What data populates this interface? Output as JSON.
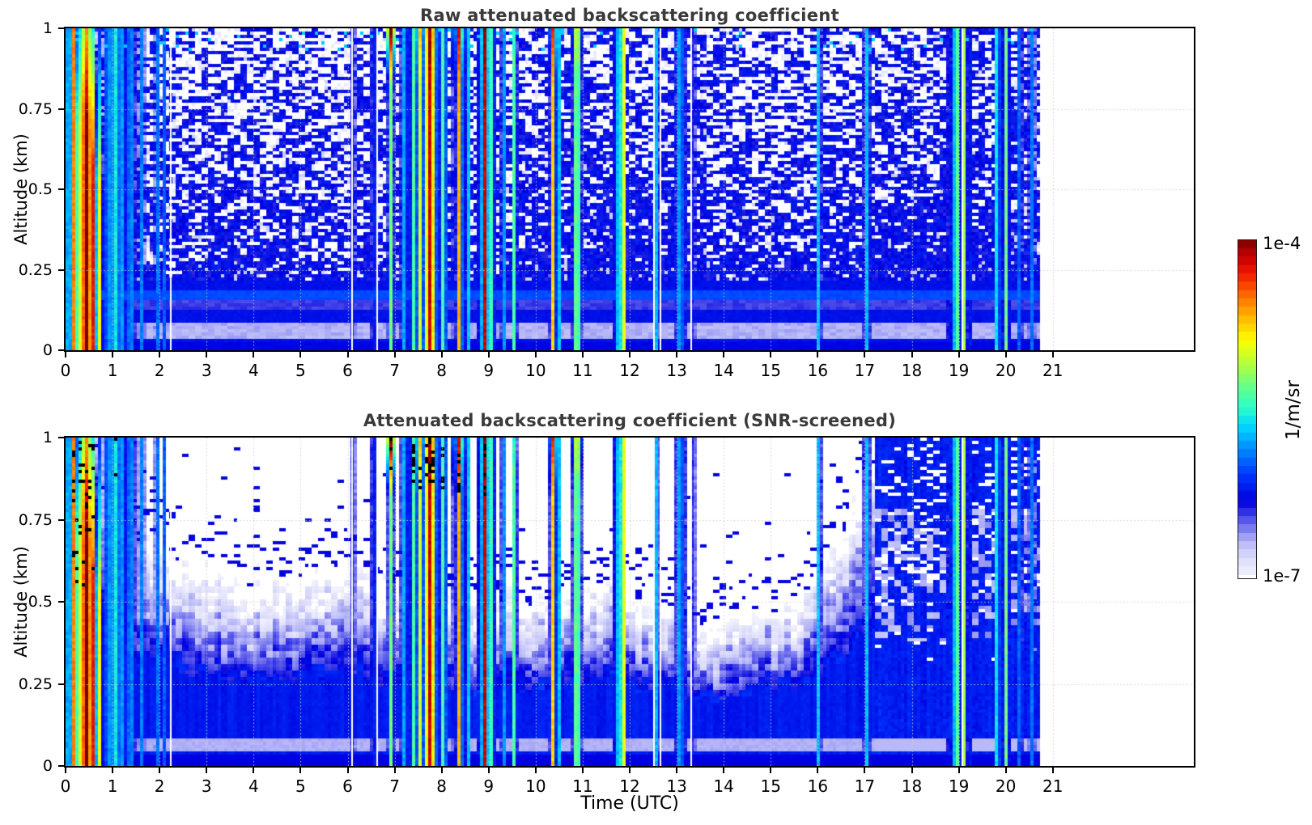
{
  "figure": {
    "background": "#ffffff"
  },
  "chart_data": [
    {
      "type": "heatmap",
      "title": "Raw attenuated backscattering coefficient",
      "xlabel": "",
      "ylabel": "Altitude (km)",
      "xlim": [
        0,
        24
      ],
      "ylim": [
        0,
        1
      ],
      "xtick_values": [
        0,
        1,
        2,
        3,
        4,
        5,
        6,
        7,
        8,
        9,
        10,
        11,
        12,
        13,
        14,
        15,
        16,
        17,
        18,
        19,
        20,
        21
      ],
      "xtick_labels": [
        "0",
        "1",
        "2",
        "3",
        "4",
        "5",
        "6",
        "7",
        "8",
        "9",
        "10",
        "11",
        "12",
        "13",
        "14",
        "15",
        "16",
        "17",
        "18",
        "19",
        "20",
        "21"
      ],
      "ytick_values": [
        0,
        0.25,
        0.5,
        0.75,
        1
      ],
      "ytick_labels": [
        "0",
        "0.25",
        "0.5",
        "0.75",
        "1"
      ],
      "grid": true,
      "screened": false,
      "data_time_range": [
        0,
        20.72
      ]
    },
    {
      "type": "heatmap",
      "title": "Attenuated backscattering coefficient (SNR-screened)",
      "xlabel": "Time (UTC)",
      "ylabel": "Altitude (km)",
      "xlim": [
        0,
        24
      ],
      "ylim": [
        0,
        1
      ],
      "xtick_values": [
        0,
        1,
        2,
        3,
        4,
        5,
        6,
        7,
        8,
        9,
        10,
        11,
        12,
        13,
        14,
        15,
        16,
        17,
        18,
        19,
        20,
        21
      ],
      "xtick_labels": [
        "0",
        "1",
        "2",
        "3",
        "4",
        "5",
        "6",
        "7",
        "8",
        "9",
        "10",
        "11",
        "12",
        "13",
        "14",
        "15",
        "16",
        "17",
        "18",
        "19",
        "20",
        "21"
      ],
      "ytick_values": [
        0,
        0.25,
        0.5,
        0.75,
        1
      ],
      "ytick_labels": [
        "0",
        "0.25",
        "0.5",
        "0.75",
        "1"
      ],
      "grid": true,
      "screened": true,
      "data_time_range": [
        0,
        20.72
      ]
    }
  ],
  "colorbar": {
    "max_label": "1e-4",
    "min_label": "1e-7",
    "unit_label": "1/m/sr",
    "segments": 40
  },
  "lidar_features": {
    "value_scale": {
      "log_min": -7,
      "log_max": -4
    },
    "colormap_stops": [
      [
        0.0,
        "#f2f2fe"
      ],
      [
        0.05,
        "#dcdcfb"
      ],
      [
        0.1,
        "#b4b4f7"
      ],
      [
        0.14,
        "#7878f0"
      ],
      [
        0.18,
        "#3c3ce8"
      ],
      [
        0.22,
        "#0000e0"
      ],
      [
        0.3,
        "#0038ff"
      ],
      [
        0.38,
        "#0090ff"
      ],
      [
        0.44,
        "#00d4ff"
      ],
      [
        0.5,
        "#2cffc8"
      ],
      [
        0.56,
        "#64ff8c"
      ],
      [
        0.63,
        "#b4ff3c"
      ],
      [
        0.7,
        "#ffff00"
      ],
      [
        0.77,
        "#ffb400"
      ],
      [
        0.84,
        "#ff6400"
      ],
      [
        0.9,
        "#f01800"
      ],
      [
        0.95,
        "#c80000"
      ],
      [
        1.0,
        "#7a0000"
      ]
    ],
    "noise_seed": 7,
    "gaps": [
      2.24,
      6.1,
      6.62,
      12.52,
      12.65,
      13.3,
      19.07
    ],
    "boundary_layer": [
      [
        0,
        0.8
      ],
      [
        0.5,
        0.8
      ],
      [
        1,
        0.78
      ],
      [
        1.5,
        0.7
      ],
      [
        2,
        0.68
      ],
      [
        2.5,
        0.65
      ],
      [
        3,
        0.62
      ],
      [
        3.5,
        0.6
      ],
      [
        4,
        0.58
      ],
      [
        4.5,
        0.57
      ],
      [
        5,
        0.58
      ],
      [
        5.5,
        0.63
      ],
      [
        6,
        0.62
      ],
      [
        6.5,
        0.6
      ],
      [
        7,
        0.55
      ],
      [
        7.5,
        0.55
      ],
      [
        8,
        0.5
      ],
      [
        8.5,
        0.5
      ],
      [
        9,
        0.52
      ],
      [
        9.5,
        0.55
      ],
      [
        10,
        0.5
      ],
      [
        10.5,
        0.52
      ],
      [
        11,
        0.55
      ],
      [
        11.5,
        0.6
      ],
      [
        12,
        0.55
      ],
      [
        12.5,
        0.5
      ],
      [
        13,
        0.48
      ],
      [
        13.5,
        0.44
      ],
      [
        14,
        0.46
      ],
      [
        15,
        0.5
      ],
      [
        15.5,
        0.52
      ],
      [
        16,
        0.58
      ],
      [
        16.5,
        0.7
      ],
      [
        17,
        0.92
      ],
      [
        17.3,
        1.0
      ],
      [
        20.72,
        1.0
      ]
    ],
    "events": [
      {
        "t": 0.07,
        "w": 0.015,
        "peak": -4.3,
        "spread": 1.5,
        "z_full": 1,
        "fade": 0
      },
      {
        "t": 0.18,
        "w": 0.045,
        "peak": -4.5,
        "spread": 1.8,
        "z_full": 1,
        "fade": 0,
        "black_top": true,
        "black_z": 0.6,
        "black_p": 0.12
      },
      {
        "t": 0.42,
        "w": 0.17,
        "peak": -4.1,
        "spread": 2.4,
        "z_full": 0.7,
        "fade": 2.2,
        "black_top": true,
        "black_z": 0.55,
        "black_p": 0.1
      },
      {
        "t": 0.58,
        "w": 0.08,
        "peak": -4.35,
        "spread": 2.0,
        "z_full": 0.55,
        "fade": 2.8
      },
      {
        "t": 0.72,
        "w": 0.05,
        "peak": -4.9,
        "spread": 1.6,
        "z_full": 0.5,
        "fade": 2.6
      },
      {
        "t": 0.9,
        "w": 0.05,
        "peak": -5.5,
        "spread": 1.2,
        "z_full": 1,
        "fade": 0.5
      },
      {
        "t": 1.08,
        "w": 0.07,
        "peak": -5.35,
        "spread": 1.0,
        "z_full": 1,
        "fade": 0.3,
        "black_top": true,
        "black_z": 0.6,
        "black_p": 0.1
      },
      {
        "t": 1.22,
        "w": 0.06,
        "peak": -5.8,
        "spread": 0.8,
        "z_full": 1,
        "fade": 0
      },
      {
        "t": 1.38,
        "w": 0.05,
        "peak": -5.6,
        "spread": 0.9,
        "z_full": 1,
        "fade": 0.4
      },
      {
        "t": 1.62,
        "w": 0.04,
        "peak": -5.9,
        "spread": 0.8,
        "z_full": 1,
        "fade": 0
      },
      {
        "t": 1.95,
        "w": 0.025,
        "peak": -5.75,
        "spread": 0.9,
        "z_full": 1,
        "fade": 0.8
      },
      {
        "t": 2.1,
        "w": 0.02,
        "peak": -6.0,
        "spread": 0.6,
        "z_full": 1,
        "fade": 0
      },
      {
        "t": 6.12,
        "w": 0.02,
        "peak": -5.7,
        "spread": 0.9,
        "z_full": 1,
        "fade": 2.5
      },
      {
        "t": 6.55,
        "w": 0.025,
        "peak": -5.6,
        "spread": 0.9,
        "z_full": 1,
        "fade": 2.0
      },
      {
        "t": 6.92,
        "w": 0.03,
        "peak": -5.3,
        "spread": 1.2,
        "z_full": 1,
        "fade": 1.5,
        "top_boost": 1.4,
        "black_top": true,
        "black_z": 0.9,
        "black_p": 0.3
      },
      {
        "t": 7.22,
        "w": 0.04,
        "peak": -5.5,
        "spread": 1.0,
        "z_full": 1,
        "fade": 0.5
      },
      {
        "t": 7.38,
        "w": 0.03,
        "peak": -4.6,
        "spread": 1.8,
        "z_full": 1,
        "fade": 0,
        "black_top": true,
        "black_z": 0.84,
        "black_p": 0.3
      },
      {
        "t": 7.52,
        "w": 0.03,
        "peak": -4.35,
        "spread": 1.8,
        "z_full": 1,
        "fade": 0,
        "top_boost": 0.3,
        "black_top": true,
        "black_z": 0.84,
        "black_p": 0.3
      },
      {
        "t": 7.75,
        "w": 0.1,
        "peak": -4.12,
        "spread": 2.2,
        "z_full": 0.95,
        "fade": 0,
        "top_boost": 0.12,
        "black_top": true,
        "black_z": 0.86,
        "black_p": 0.35
      },
      {
        "t": 8.05,
        "w": 0.03,
        "peak": -4.4,
        "spread": 1.9,
        "z_full": 1,
        "fade": 0,
        "black_top": true,
        "black_z": 0.84,
        "black_p": 0.3
      },
      {
        "t": 8.38,
        "w": 0.05,
        "peak": -4.55,
        "spread": 2.0,
        "z_full": 1,
        "fade": 0,
        "top_boost": 0.5,
        "black_top": true,
        "black_z": 0.82,
        "black_p": 0.35
      },
      {
        "t": 8.55,
        "w": 0.025,
        "peak": -4.7,
        "spread": 1.7,
        "z_full": 1,
        "fade": 0
      },
      {
        "t": 8.92,
        "w": 0.06,
        "peak": -4.15,
        "spread": 2.2,
        "z_full": 1,
        "fade": 0,
        "top_boost": 0.12,
        "black_top": true,
        "black_z": 0.8,
        "black_p": 0.35
      },
      {
        "t": 9.08,
        "w": 0.03,
        "peak": -4.6,
        "spread": 1.8,
        "z_full": 1,
        "fade": 0
      },
      {
        "t": 9.32,
        "w": 0.02,
        "peak": -5.6,
        "spread": 0.9,
        "z_full": 1,
        "fade": 0.5
      },
      {
        "t": 9.55,
        "w": 0.02,
        "peak": -4.95,
        "spread": 1.5,
        "z_full": 0.9,
        "fade": 1.5
      },
      {
        "t": 10.38,
        "w": 0.04,
        "peak": -4.5,
        "spread": 2.0,
        "z_full": 1,
        "fade": 0,
        "top_boost": 0.45
      },
      {
        "t": 10.48,
        "w": 0.025,
        "peak": -4.8,
        "spread": 1.7,
        "z_full": 1,
        "fade": 0
      },
      {
        "t": 10.88,
        "w": 0.045,
        "peak": -4.5,
        "spread": 2.0,
        "z_full": 1,
        "fade": 0,
        "top_boost": 0.3
      },
      {
        "t": 11.78,
        "w": 0.05,
        "peak": -5.25,
        "spread": 1.1,
        "z_full": 1,
        "fade": 0
      },
      {
        "t": 11.88,
        "w": 0.02,
        "peak": -4.95,
        "spread": 1.4,
        "z_full": 1,
        "fade": 0
      },
      {
        "t": 12.58,
        "w": 0.025,
        "peak": -5.55,
        "spread": 1.0,
        "z_full": 1,
        "fade": 0.5
      },
      {
        "t": 13.08,
        "w": 0.04,
        "peak": -5.35,
        "spread": 1.1,
        "z_full": 1,
        "fade": 0.3
      },
      {
        "t": 13.35,
        "w": 0.02,
        "peak": -5.8,
        "spread": 0.8,
        "z_full": 1,
        "fade": 1.0
      },
      {
        "t": 16.02,
        "w": 0.02,
        "peak": -5.6,
        "spread": 0.9,
        "z_full": 1,
        "fade": 2.8
      },
      {
        "t": 17.05,
        "w": 0.03,
        "peak": -5.7,
        "spread": 0.8,
        "z_full": 1,
        "fade": 3.0
      },
      {
        "t": 18.95,
        "w": 0.06,
        "peak": -5.2,
        "spread": 1.2,
        "z_full": 1,
        "fade": 2.2
      },
      {
        "t": 19.12,
        "w": 0.03,
        "peak": -5.0,
        "spread": 1.4,
        "z_full": 1,
        "fade": 2.5
      },
      {
        "t": 19.22,
        "w": 0.02,
        "peak": -5.4,
        "spread": 1.0,
        "z_full": 1,
        "fade": 2.5
      },
      {
        "t": 19.82,
        "w": 0.018,
        "peak": -4.3,
        "spread": 1.8,
        "z_full": 1,
        "fade": 4.5
      },
      {
        "t": 20.02,
        "w": 0.03,
        "peak": -5.05,
        "spread": 1.3,
        "z_full": 1,
        "fade": 0.6
      },
      {
        "t": 20.3,
        "w": 0.025,
        "peak": -5.6,
        "spread": 0.9,
        "z_full": 1,
        "fade": 1.8
      },
      {
        "t": 20.55,
        "w": 0.03,
        "peak": -5.9,
        "spread": 0.7,
        "z_full": 1,
        "fade": 1.2
      }
    ]
  }
}
